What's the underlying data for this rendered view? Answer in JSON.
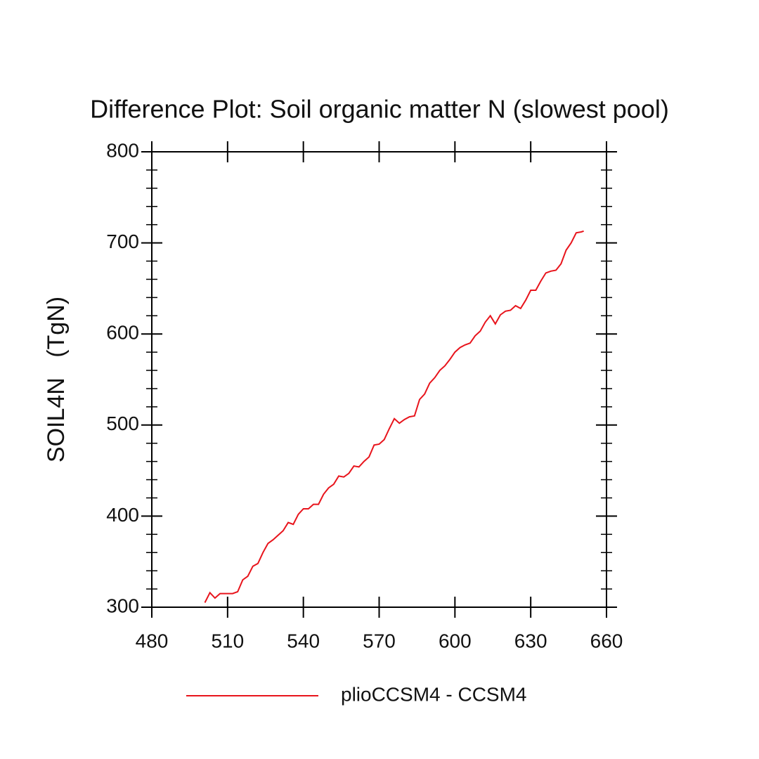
{
  "chart_data": {
    "type": "line",
    "title": "Difference Plot: Soil organic matter N (slowest pool)",
    "y_label": "SOIL4N   (TgN)",
    "x": [
      501,
      503,
      505,
      507,
      510,
      512,
      514,
      516,
      518,
      520,
      522,
      524,
      526,
      528,
      530,
      532,
      534,
      536,
      538,
      540,
      542,
      544,
      546,
      548,
      550,
      552,
      554,
      556,
      558,
      560,
      562,
      564,
      566,
      568,
      570,
      572,
      574,
      576,
      578,
      580,
      582,
      584,
      586,
      588,
      590,
      592,
      594,
      596,
      598,
      600,
      602,
      604,
      606,
      608,
      610,
      612,
      614,
      616,
      618,
      620,
      622,
      624,
      626,
      628,
      630,
      632,
      634,
      636,
      638,
      640,
      642,
      644,
      646,
      648,
      650,
      651
    ],
    "series": [
      {
        "name": "plioCCSM4 - CCSM4",
        "color": "#e8141c",
        "values": [
          305,
          316,
          310,
          315,
          315,
          315,
          317,
          330,
          334,
          345,
          348,
          360,
          370,
          374,
          379,
          384,
          393,
          391,
          402,
          408,
          408,
          413,
          413,
          424,
          431,
          435,
          444,
          443,
          447,
          455,
          454,
          460,
          465,
          478,
          479,
          484,
          496,
          507,
          502,
          506,
          509,
          510,
          528,
          534,
          546,
          552,
          560,
          565,
          572,
          580,
          585,
          588,
          590,
          598,
          603,
          613,
          620,
          611,
          621,
          625,
          626,
          631,
          628,
          637,
          648,
          648,
          658,
          667,
          669,
          670,
          677,
          692,
          700,
          711,
          712,
          713
        ]
      }
    ],
    "xlim": [
      480,
      660
    ],
    "xticks": [
      480,
      510,
      540,
      570,
      600,
      630,
      660
    ],
    "ylim": [
      300,
      800
    ],
    "yticks": [
      300,
      400,
      500,
      600,
      700,
      800
    ],
    "yminorticks": [
      320,
      340,
      360,
      380,
      420,
      440,
      460,
      480,
      520,
      540,
      560,
      580,
      620,
      640,
      660,
      680,
      720,
      740,
      760,
      780
    ]
  }
}
